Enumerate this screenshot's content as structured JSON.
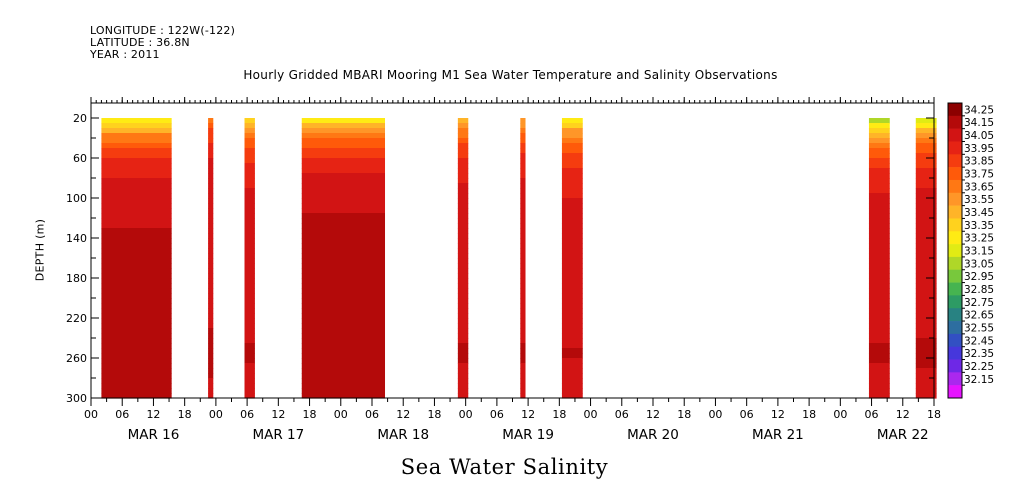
{
  "header": {
    "longitude": "LONGITUDE : 122W(-122)",
    "latitude": "LATITUDE : 36.8N",
    "year": "YEAR : 2011",
    "title": "Hourly Gridded MBARI Mooring M1 Sea Water Temperature and Salinity Observations"
  },
  "footer": {
    "caption": "Sea Water Salinity"
  },
  "chart_data": {
    "type": "heatmap",
    "title": "Hourly Gridded MBARI Mooring M1 Sea Water Temperature and Salinity Observations",
    "xlabel": "",
    "ylabel": "DEPTH (m)",
    "x_unit": "hours since MAR 15 00",
    "xlim": [
      120,
      282
    ],
    "ylim": [
      300,
      5
    ],
    "y_ticks": [
      20,
      60,
      100,
      140,
      180,
      220,
      260,
      300
    ],
    "x_hour_tick_labels": [
      "00",
      "06",
      "12",
      "18"
    ],
    "day_labels": [
      {
        "label": "MAR 16",
        "x": 132
      },
      {
        "label": "MAR 17",
        "x": 156
      },
      {
        "label": "MAR 18",
        "x": 180
      },
      {
        "label": "MAR 19",
        "x": 204
      },
      {
        "label": "MAR 20",
        "x": 228
      },
      {
        "label": "MAR 21",
        "x": 252
      },
      {
        "label": "MAR 22",
        "x": 276
      }
    ],
    "data_depth_range": [
      20,
      300
    ],
    "colorbar": {
      "labels": [
        "34.25",
        "34.15",
        "34.05",
        "33.95",
        "33.85",
        "33.75",
        "33.65",
        "33.55",
        "33.45",
        "33.35",
        "33.25",
        "33.15",
        "33.05",
        "32.95",
        "32.85",
        "32.75",
        "32.65",
        "32.55",
        "32.45",
        "32.35",
        "32.25",
        "32.15"
      ],
      "colors": [
        "#8c0000",
        "#b40a0a",
        "#d21414",
        "#e62314",
        "#f53c0f",
        "#ff5a0a",
        "#ff7814",
        "#ff9628",
        "#ffb428",
        "#ffd21e",
        "#ffeb14",
        "#e1eb14",
        "#afd728",
        "#78c83c",
        "#46b450",
        "#2d9b64",
        "#288282",
        "#2d6ea0",
        "#3250c3",
        "#4637dc",
        "#6e28e6",
        "#aa28ee",
        "#e614ff"
      ]
    },
    "series": [
      {
        "x_start": 122.0,
        "x_end": 135.5,
        "surface": 33.2,
        "deep": 34.17
      },
      {
        "x_start": 142.5,
        "x_end": 143.5,
        "surface": 33.7,
        "deep": 34.15
      },
      {
        "x_start": 149.5,
        "x_end": 151.5,
        "surface": 33.3,
        "deep": 34.12
      },
      {
        "x_start": 160.5,
        "x_end": 176.5,
        "surface": 33.25,
        "deep": 34.18
      },
      {
        "x_start": 190.5,
        "x_end": 192.5,
        "surface": 33.4,
        "deep": 34.12
      },
      {
        "x_start": 202.5,
        "x_end": 203.5,
        "surface": 33.5,
        "deep": 34.12
      },
      {
        "x_start": 210.5,
        "x_end": 214.5,
        "surface": 33.25,
        "deep": 34.1
      },
      {
        "x_start": 269.5,
        "x_end": 273.5,
        "surface": 33.05,
        "deep": 34.12
      },
      {
        "x_start": 278.5,
        "x_end": 282.5,
        "surface": 33.1,
        "deep": 34.14
      }
    ]
  }
}
